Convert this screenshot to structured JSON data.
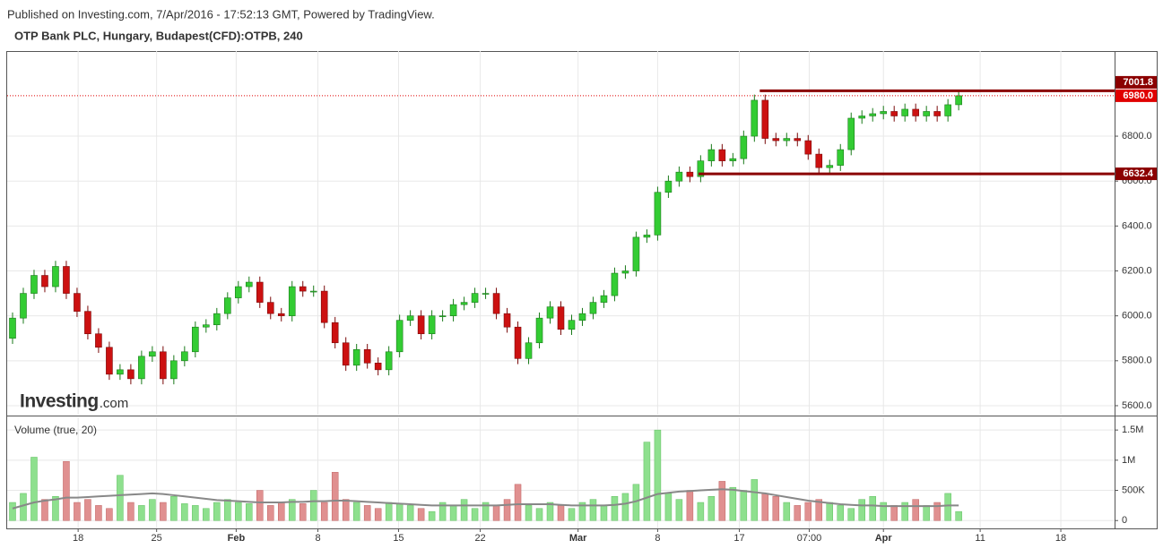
{
  "header": {
    "published": "Published on Investing.com, 7/Apr/2016 - 17:52:13 GMT, Powered by TradingView.",
    "symbol": "OTP Bank PLC, Hungary, Budapest(CFD):OTPB, 240"
  },
  "chart_data": {
    "type": "candlestick",
    "logo": {
      "name": "Investing",
      "suffix": ".com"
    },
    "x": [
      0.5,
      1.5,
      2.5,
      3.5,
      4.5,
      5.5,
      6.5,
      7.5,
      8.5,
      9.5,
      10.5,
      11.5,
      12.5,
      13.5,
      14.5,
      15.5,
      16.5,
      17.5,
      18.5,
      19.5,
      20.5,
      21.5,
      22.5,
      23.5,
      24.5,
      25.5,
      26.5,
      27.5,
      28.5,
      29.5,
      30.5,
      31.5,
      32.5,
      33.5,
      34.5,
      35.5,
      36.5,
      37.5,
      38.5,
      39.5,
      40.5,
      41.5,
      42.5,
      43.5,
      44.5,
      45.5,
      46.5,
      47.5,
      48.5,
      49.5,
      50.5,
      51.5,
      52.5,
      53.5,
      54.5,
      55.5,
      56.5,
      57.5,
      58.5,
      59.5,
      60.5,
      61.5,
      62.5,
      63.5,
      64.5,
      65.5,
      66.5,
      67.5,
      68.5,
      69.5,
      70.5,
      71.5,
      72.5,
      73.5,
      74.5,
      75.5,
      76.5,
      77.5,
      78.5,
      79.5,
      80.5,
      81.5,
      82.5,
      83.5,
      84.5,
      85.5,
      86.5,
      87.5,
      88.5
    ],
    "xlim": [
      0,
      103
    ],
    "xticks": [
      {
        "value": 6.6,
        "label": "18"
      },
      {
        "value": 13.9,
        "label": "25"
      },
      {
        "value": 21.3,
        "label": "Feb"
      },
      {
        "value": 28.9,
        "label": "8"
      },
      {
        "value": 36.4,
        "label": "15"
      },
      {
        "value": 44,
        "label": "22"
      },
      {
        "value": 53.1,
        "label": "Mar"
      },
      {
        "value": 60.5,
        "label": "8"
      },
      {
        "value": 68.1,
        "label": "17"
      },
      {
        "value": 74.6,
        "label": "07:00"
      },
      {
        "value": 81.5,
        "label": "Apr"
      },
      {
        "value": 90.5,
        "label": "11"
      },
      {
        "value": 98,
        "label": "18"
      }
    ],
    "open": [
      5900,
      5990,
      6100,
      6180,
      6130,
      6220,
      6100,
      6020,
      5920,
      5860,
      5740,
      5760,
      5720,
      5820,
      5840,
      5720,
      5800,
      5840,
      5950,
      5960,
      6010,
      6080,
      6130,
      6150,
      6060,
      6010,
      6000,
      6130,
      6110,
      6110,
      5970,
      5880,
      5780,
      5850,
      5790,
      5760,
      5840,
      5980,
      6000,
      5920,
      6000,
      6000,
      6050,
      6060,
      6100,
      6100,
      6010,
      5950,
      5810,
      5880,
      5990,
      6040,
      5940,
      5980,
      6010,
      6060,
      6090,
      6190,
      6200,
      6350,
      6360,
      6550,
      6600,
      6640,
      6620,
      6690,
      6740,
      6690,
      6700,
      6800,
      6960,
      6790,
      6780,
      6790,
      6780,
      6720,
      6660,
      6670,
      6740,
      6880,
      6890,
      6900,
      6910,
      6890,
      6920,
      6890,
      6910,
      6890,
      6940
    ],
    "high": [
      6015,
      6125,
      6205,
      6205,
      6245,
      6245,
      6125,
      6045,
      5945,
      5885,
      5785,
      5785,
      5845,
      5865,
      5865,
      5825,
      5865,
      5975,
      5985,
      6035,
      6105,
      6155,
      6175,
      6175,
      6085,
      6035,
      6155,
      6155,
      6135,
      6135,
      5995,
      5905,
      5875,
      5875,
      5815,
      5865,
      6005,
      6025,
      6025,
      6025,
      6025,
      6075,
      6085,
      6125,
      6125,
      6125,
      6035,
      5975,
      5905,
      6015,
      6065,
      6065,
      6005,
      6035,
      6085,
      6115,
      6215,
      6225,
      6375,
      6385,
      6575,
      6625,
      6665,
      6665,
      6715,
      6765,
      6765,
      6725,
      6825,
      6985,
      6985,
      6815,
      6815,
      6815,
      6805,
      6745,
      6695,
      6765,
      6905,
      6915,
      6925,
      6935,
      6935,
      6945,
      6945,
      6935,
      6935,
      6965,
      7001.8
    ],
    "low": [
      5875,
      5965,
      6075,
      6105,
      6105,
      6075,
      5995,
      5895,
      5835,
      5715,
      5715,
      5695,
      5695,
      5795,
      5695,
      5695,
      5775,
      5815,
      5925,
      5935,
      5985,
      6055,
      6105,
      6035,
      5985,
      5975,
      5975,
      6085,
      6085,
      5945,
      5855,
      5755,
      5755,
      5765,
      5735,
      5735,
      5815,
      5955,
      5895,
      5895,
      5975,
      5975,
      6025,
      6035,
      6075,
      5985,
      5925,
      5785,
      5785,
      5855,
      5965,
      5915,
      5915,
      5955,
      5985,
      6035,
      6065,
      6165,
      6175,
      6325,
      6335,
      6525,
      6575,
      6595,
      6595,
      6665,
      6665,
      6665,
      6675,
      6775,
      6765,
      6755,
      6755,
      6755,
      6695,
      6635,
      6635,
      6645,
      6715,
      6855,
      6865,
      6875,
      6865,
      6865,
      6865,
      6865,
      6865,
      6865,
      6915
    ],
    "close": [
      5990,
      6100,
      6180,
      6130,
      6220,
      6100,
      6020,
      5920,
      5860,
      5740,
      5760,
      5720,
      5820,
      5840,
      5720,
      5800,
      5840,
      5950,
      5960,
      6010,
      6080,
      6130,
      6150,
      6060,
      6010,
      6000,
      6130,
      6110,
      6110,
      5970,
      5880,
      5780,
      5850,
      5790,
      5760,
      5840,
      5980,
      6000,
      5920,
      6000,
      6000,
      6050,
      6060,
      6100,
      6100,
      6010,
      5950,
      5810,
      5880,
      5990,
      6040,
      5940,
      5980,
      6010,
      6060,
      6090,
      6190,
      6200,
      6350,
      6360,
      6550,
      6600,
      6640,
      6620,
      6690,
      6740,
      6690,
      6700,
      6800,
      6960,
      6790,
      6780,
      6790,
      6780,
      6720,
      6660,
      6670,
      6740,
      6880,
      6890,
      6900,
      6910,
      6890,
      6920,
      6890,
      6910,
      6890,
      6940,
      6980
    ],
    "up_color": "#33cc33",
    "down_color": "#cc1111",
    "ylim": [
      5560,
      7179
    ],
    "yticks": [
      {
        "value": 5600,
        "label": "5600.0"
      },
      {
        "value": 5800,
        "label": "5800.0"
      },
      {
        "value": 6000,
        "label": "6000.0"
      },
      {
        "value": 6200,
        "label": "6200.0"
      },
      {
        "value": 6400,
        "label": "6400.0"
      },
      {
        "value": 6600,
        "label": "6600.0"
      },
      {
        "value": 6800,
        "label": "6800.0"
      }
    ],
    "grid": true,
    "hlines": [
      {
        "value": 6980,
        "label": "6980.0",
        "color": "#e00000",
        "dotted": true
      },
      {
        "value": 7001.8,
        "label": "7001.8",
        "color": "#8b0000",
        "x_start": 70
      },
      {
        "value": 6632.4,
        "label": "6632.4",
        "color": "#8b0000",
        "x_start": 64.3
      }
    ],
    "volume_pane": {
      "label": "Volume (true, 20)",
      "volume": [
        300000,
        450000,
        1050000,
        350000,
        400000,
        980000,
        300000,
        350000,
        250000,
        200000,
        750000,
        300000,
        250000,
        350000,
        300000,
        400000,
        280000,
        250000,
        200000,
        300000,
        350000,
        300000,
        280000,
        500000,
        250000,
        300000,
        350000,
        280000,
        500000,
        300000,
        800000,
        350000,
        300000,
        250000,
        200000,
        300000,
        280000,
        250000,
        200000,
        150000,
        300000,
        250000,
        350000,
        200000,
        300000,
        250000,
        350000,
        600000,
        250000,
        200000,
        300000,
        250000,
        200000,
        300000,
        350000,
        250000,
        400000,
        450000,
        600000,
        1300000,
        1500000,
        450000,
        350000,
        500000,
        300000,
        400000,
        650000,
        550000,
        500000,
        680000,
        450000,
        400000,
        300000,
        250000,
        300000,
        350000,
        300000,
        250000,
        200000,
        350000,
        400000,
        300000,
        250000,
        300000,
        350000,
        250000,
        300000,
        450000,
        150000
      ],
      "ma": [
        200000,
        250000,
        300000,
        330000,
        350000,
        380000,
        380000,
        390000,
        400000,
        410000,
        420000,
        430000,
        440000,
        450000,
        440000,
        420000,
        400000,
        380000,
        360000,
        340000,
        330000,
        320000,
        310000,
        300000,
        300000,
        300000,
        310000,
        310000,
        320000,
        320000,
        330000,
        330000,
        320000,
        310000,
        300000,
        290000,
        280000,
        270000,
        260000,
        250000,
        250000,
        250000,
        250000,
        250000,
        250000,
        250000,
        260000,
        270000,
        270000,
        270000,
        270000,
        260000,
        250000,
        250000,
        250000,
        250000,
        260000,
        280000,
        320000,
        380000,
        440000,
        460000,
        480000,
        490000,
        500000,
        510000,
        520000,
        510000,
        490000,
        470000,
        450000,
        420000,
        390000,
        360000,
        330000,
        310000,
        290000,
        270000,
        260000,
        250000,
        250000,
        240000,
        240000,
        240000,
        240000,
        240000,
        240000,
        250000,
        250000
      ],
      "up_color": "#8ee08e",
      "down_color": "#e09090",
      "ma_color": "#888888",
      "ylim": [
        -130000,
        1710000
      ],
      "yticks": [
        0,
        {
          "value": 500000,
          "label": "500K"
        },
        {
          "value": 1000000,
          "label": "1M"
        },
        {
          "value": 1500000,
          "label": "1.5M"
        }
      ]
    }
  }
}
